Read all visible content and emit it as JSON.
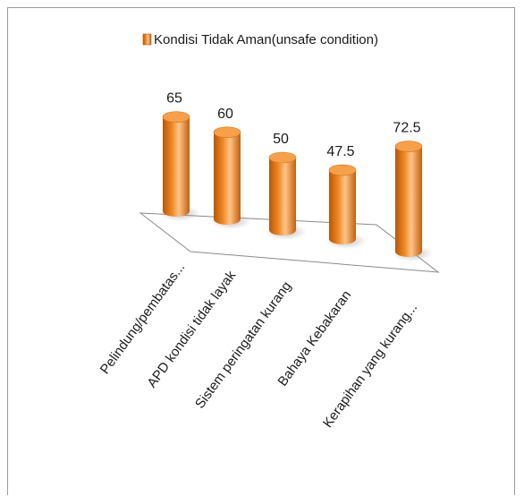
{
  "chart_data": {
    "type": "bar",
    "style": "3d-cylinder",
    "legend": {
      "label": "Kondisi Tidak Aman(unsafe condition)",
      "position": "top"
    },
    "categories": [
      "Pelindung/pembatas...",
      "APD kondisi tidak layak",
      "Sistem peringatan kurang",
      "Bahaya Kebakaran",
      "Kerapihan yang kurang..."
    ],
    "series": [
      {
        "name": "Kondisi Tidak Aman(unsafe condition)",
        "values": [
          65,
          60,
          50,
          47.5,
          72.5
        ],
        "labels": [
          "65",
          "60",
          "50",
          "47.5",
          "72.5"
        ]
      }
    ],
    "colors": {
      "bar_dark": "#b8560a",
      "bar_mid": "#f08a24",
      "bar_light": "#ffc58a",
      "bar_top": "#f6a04c",
      "floor_stroke": "#8a8a8a",
      "frame": "#9a9a9a"
    },
    "grid": false
  }
}
